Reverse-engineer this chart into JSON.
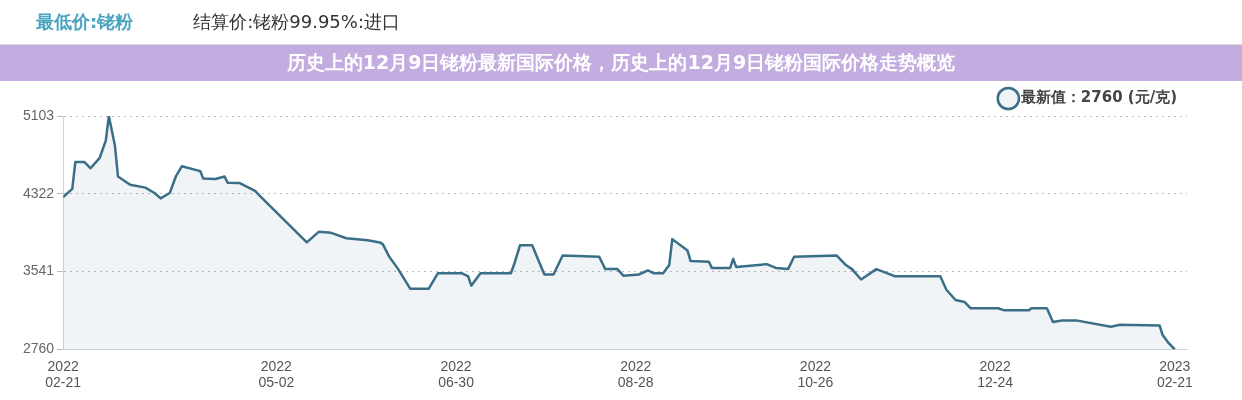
{
  "chart_data": {
    "type": "area",
    "title": "最低价:铑粉",
    "subtitle": "结算价:铑粉99.95%:进口",
    "annotations": [
      "历史上的12月9日铑粉最新国际价格，历史上的12月9日铑粉国际价格走势概览"
    ],
    "x": [
      "2022-02-21",
      "2022-02-24",
      "2022-02-25",
      "2022-02-28",
      "2022-03-02",
      "2022-03-05",
      "2022-03-07",
      "2022-03-08",
      "2022-03-10",
      "2022-03-11",
      "2022-03-15",
      "2022-03-20",
      "2022-03-23",
      "2022-03-25",
      "2022-03-28",
      "2022-03-30",
      "2022-04-01",
      "2022-04-07",
      "2022-04-08",
      "2022-04-12",
      "2022-04-15",
      "2022-04-16",
      "2022-04-20",
      "2022-04-25",
      "2022-04-27",
      "2022-05-12",
      "2022-05-16",
      "2022-05-20",
      "2022-05-25",
      "2022-06-01",
      "2022-06-05",
      "2022-06-06",
      "2022-06-08",
      "2022-06-11",
      "2022-06-15",
      "2022-06-21",
      "2022-06-24",
      "2022-07-02",
      "2022-07-04",
      "2022-07-05",
      "2022-07-08",
      "2022-07-18",
      "2022-07-19",
      "2022-07-21",
      "2022-07-25",
      "2022-07-29",
      "2022-08-01",
      "2022-08-04",
      "2022-08-16",
      "2022-08-18",
      "2022-08-22",
      "2022-08-24",
      "2022-08-29",
      "2022-09-01",
      "2022-09-03",
      "2022-09-06",
      "2022-09-08",
      "2022-09-09",
      "2022-09-14",
      "2022-09-15",
      "2022-09-21",
      "2022-09-22",
      "2022-09-28",
      "2022-09-29",
      "2022-09-30",
      "2022-10-10",
      "2022-10-13",
      "2022-10-17",
      "2022-10-19",
      "2022-11-02",
      "2022-11-05",
      "2022-11-07",
      "2022-11-10",
      "2022-11-15",
      "2022-11-21",
      "2022-12-06",
      "2022-12-08",
      "2022-12-11",
      "2022-12-14",
      "2022-12-16",
      "2022-12-25",
      "2022-12-27",
      "2023-01-04",
      "2023-01-05",
      "2023-01-10",
      "2023-01-12",
      "2023-01-15",
      "2023-01-20",
      "2023-01-31",
      "2023-02-03",
      "2023-02-16",
      "2023-02-17",
      "2023-02-19",
      "2023-02-21"
    ],
    "series": [
      {
        "name": "最新值：2760 (元/克)",
        "color": "#3a6f87",
        "values": [
          4290,
          4372,
          4640,
          4640,
          4578,
          4682,
          4856,
          5103,
          4806,
          4496,
          4413,
          4384,
          4330,
          4276,
          4330,
          4496,
          4599,
          4550,
          4475,
          4470,
          4496,
          4434,
          4430,
          4351,
          4289,
          3834,
          3942,
          3930,
          3876,
          3855,
          3834,
          3814,
          3694,
          3566,
          3368,
          3368,
          3524,
          3524,
          3492,
          3400,
          3524,
          3524,
          3607,
          3805,
          3805,
          3512,
          3512,
          3702,
          3690,
          3566,
          3566,
          3499,
          3512,
          3553,
          3524,
          3524,
          3607,
          3867,
          3752,
          3648,
          3640,
          3578,
          3578,
          3669,
          3586,
          3616,
          3578,
          3566,
          3690,
          3702,
          3607,
          3566,
          3462,
          3566,
          3495,
          3495,
          3359,
          3256,
          3235,
          3173,
          3173,
          3152,
          3152,
          3173,
          3173,
          3036,
          3049,
          3049,
          2987,
          3008,
          3000,
          2904,
          2822,
          2760
        ]
      }
    ],
    "xlim": [
      "2022-02-21",
      "2023-02-25"
    ],
    "xticks": [
      {
        "value": "2022-02-21",
        "label": "2022\n02-21"
      },
      {
        "value": "2022-05-02",
        "label": "2022\n05-02"
      },
      {
        "value": "2022-06-30",
        "label": "2022\n06-30"
      },
      {
        "value": "2022-08-28",
        "label": "2022\n08-28"
      },
      {
        "value": "2022-10-26",
        "label": "2022\n10-26"
      },
      {
        "value": "2022-12-24",
        "label": "2022\n12-24"
      },
      {
        "value": "2023-02-21",
        "label": "2023\n02-21"
      }
    ],
    "ylim": [
      2760,
      5103
    ],
    "yticks": [
      2760,
      3541,
      4322,
      5103
    ],
    "grid": "y",
    "legend": "top right",
    "marker": "none",
    "line_style": "solid"
  }
}
